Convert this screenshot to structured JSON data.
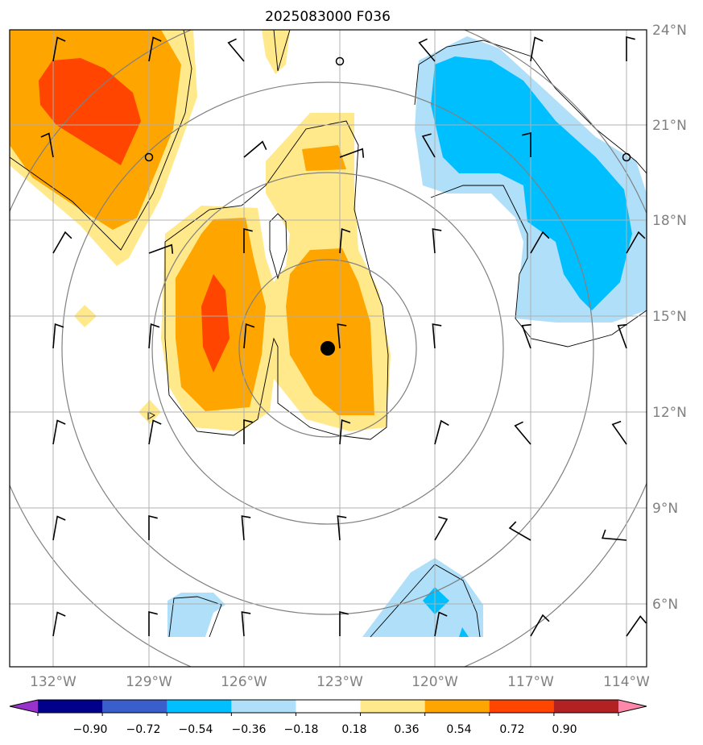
{
  "title": "2025083000 F036",
  "lat_labels": [
    "24°N",
    "21°N",
    "18°N",
    "15°N",
    "12°N",
    "9°N",
    "6°N"
  ],
  "lon_labels": [
    "132°W",
    "129°W",
    "126°W",
    "123°W",
    "120°W",
    "117°W",
    "114°W"
  ],
  "colorbar": {
    "ticks": [
      "−0.90",
      "−0.72",
      "−0.54",
      "−0.36",
      "−0.18",
      "0.18",
      "0.36",
      "0.54",
      "0.72",
      "0.90"
    ],
    "colors": [
      "#9932cc",
      "#00008b",
      "#3a5fcd",
      "#00bfff",
      "#b0dff9",
      "#ffffff",
      "#ffe98a",
      "#ffa500",
      "#ff4500",
      "#b22222",
      "#ff88aa"
    ]
  },
  "storm_center": {
    "lat": 14.0,
    "lon": -123.4
  }
}
